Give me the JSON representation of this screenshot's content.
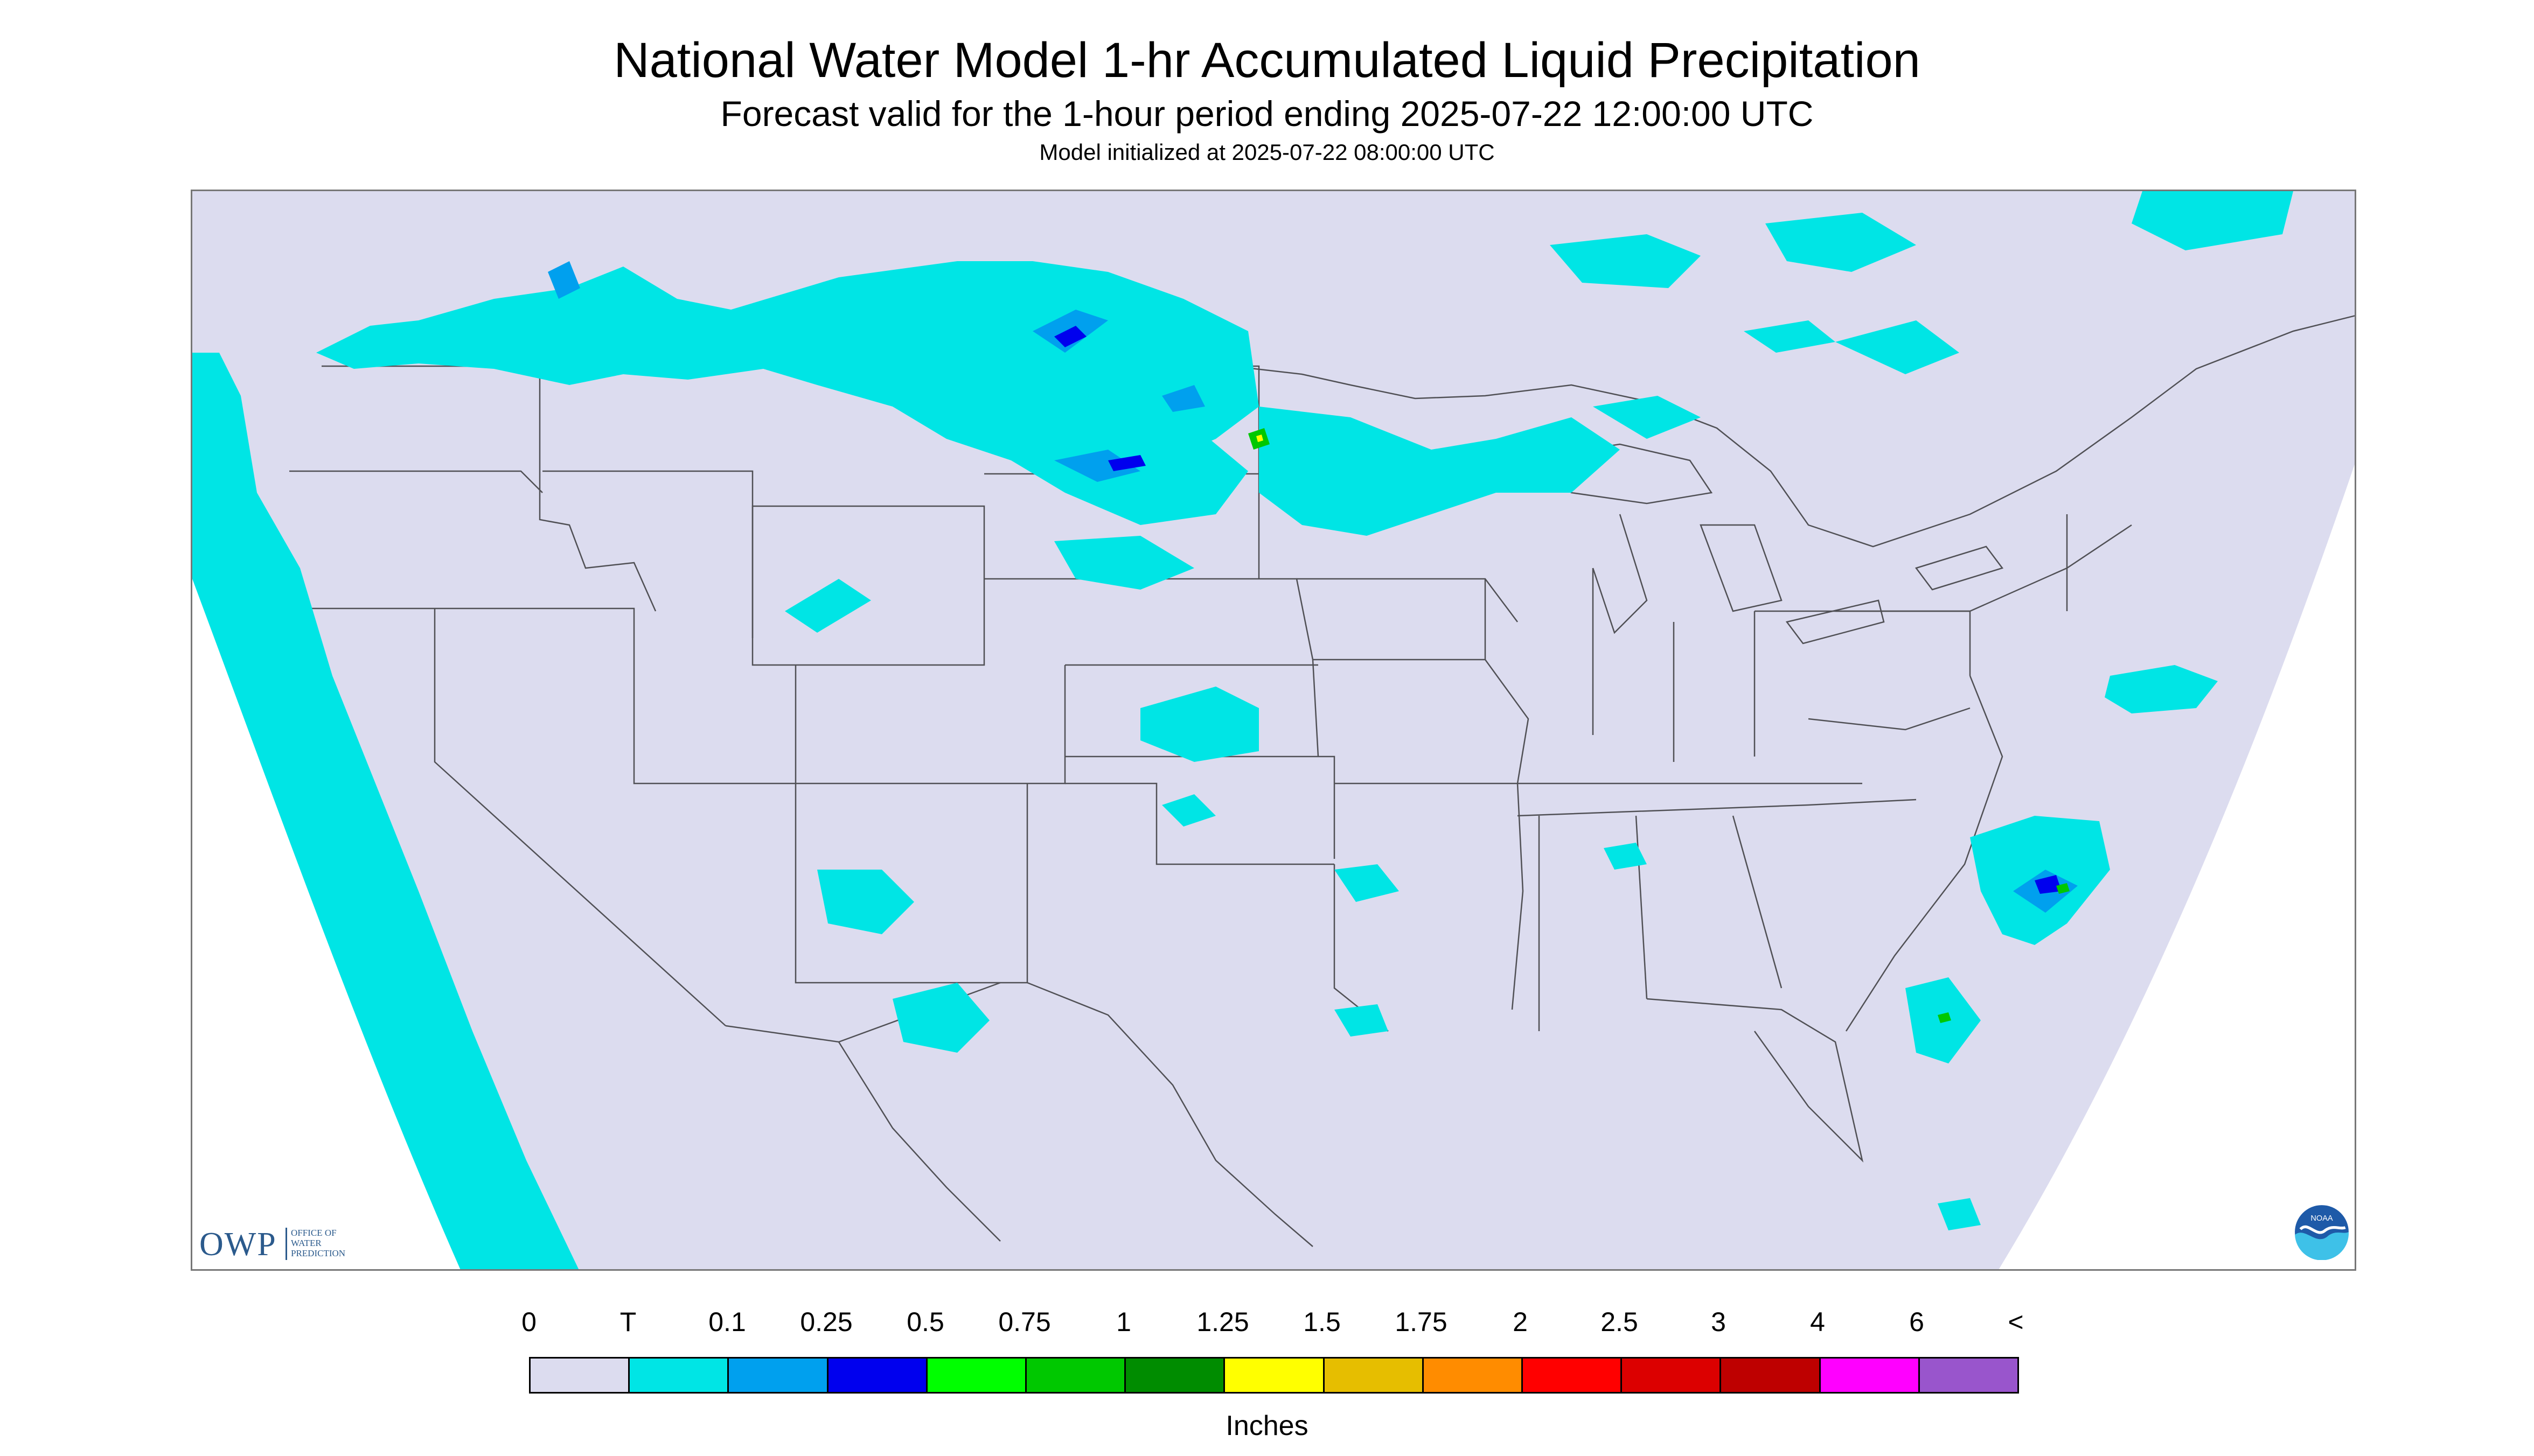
{
  "header": {
    "title": "National Water Model 1-hr Accumulated Liquid Precipitation",
    "subtitle": "Forecast valid for the 1-hour period ending 2025-07-22 12:00:00 UTC",
    "init": "Model initialized at 2025-07-22 08:00:00 UTC"
  },
  "map": {
    "background_color": "#dcdcef",
    "outside_domain_color": "#ffffff",
    "trace_color": "#00e5e5",
    "precip_regions": [
      {
        "name": "Northern Plains / Montana band",
        "category": "T"
      },
      {
        "name": "North Dakota / Minnesota cluster",
        "category": "0.25"
      },
      {
        "name": "Pacific Northwest coast",
        "category": "T"
      },
      {
        "name": "Pacific Ocean off California",
        "category": "T"
      },
      {
        "name": "Offshore North Carolina",
        "category": "0.5"
      },
      {
        "name": "Kansas / Nebraska",
        "category": "T"
      },
      {
        "name": "Southwest (Arizona / New Mexico)",
        "category": "T"
      },
      {
        "name": "Texas",
        "category": "T"
      },
      {
        "name": "Atlantic off New England",
        "category": "T"
      }
    ]
  },
  "logos": {
    "owp_letters": "OWP",
    "owp_text_line1": "OFFICE OF",
    "owp_text_line2": "WATER",
    "owp_text_line3": "PREDICTION",
    "noaa_text": "NOAA",
    "noaa_colors": [
      "#1e5aa8",
      "#3ec1e8"
    ]
  },
  "legend": {
    "labels": [
      "0",
      "T",
      "0.1",
      "0.25",
      "0.5",
      "0.75",
      "1",
      "1.25",
      "1.5",
      "1.75",
      "2",
      "2.5",
      "3",
      "4",
      "6",
      "<"
    ],
    "colors": [
      "#dcdcef",
      "#00e5e5",
      "#00a0ee",
      "#0000ee",
      "#00ff00",
      "#00c800",
      "#008c00",
      "#ffff00",
      "#e6be00",
      "#ff8c00",
      "#ff0000",
      "#dc0000",
      "#be0000",
      "#ff00ff",
      "#9955cc"
    ],
    "units": "Inches"
  }
}
